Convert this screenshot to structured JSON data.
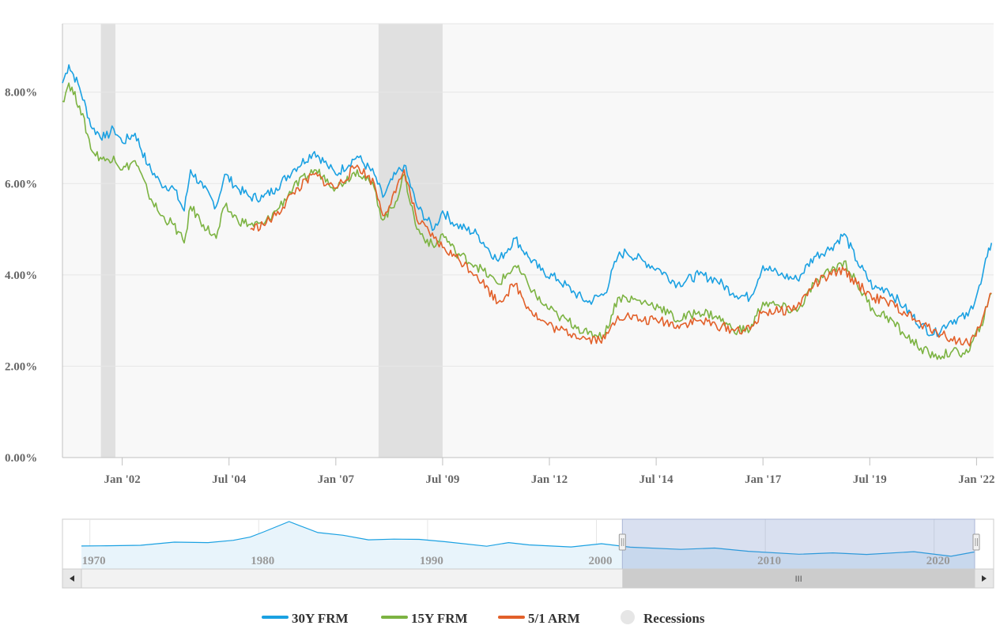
{
  "chart_data": {
    "type": "line",
    "ylim": [
      0,
      9.5
    ],
    "y_ticks": [
      "0.00%",
      "2.00%",
      "4.00%",
      "6.00%",
      "8.00%"
    ],
    "y_tick_values": [
      0,
      2,
      4,
      6,
      8
    ],
    "xlim": [
      2000.6,
      2022.4
    ],
    "x_ticks": [
      "Jan '02",
      "Jul '04",
      "Jan '07",
      "Jul '09",
      "Jan '12",
      "Jul '14",
      "Jan '17",
      "Jul '19",
      "Jan '22"
    ],
    "x_tick_values": [
      2002.0,
      2004.5,
      2007.0,
      2009.5,
      2012.0,
      2014.5,
      2017.0,
      2019.5,
      2022.0
    ],
    "grid": true,
    "legend_position": "bottom-center",
    "recessions": [
      [
        2001.5,
        2001.84
      ],
      [
        2008.0,
        2009.5
      ]
    ],
    "series": [
      {
        "name": "30Y FRM",
        "color": "#1ba1e2",
        "points": [
          [
            2000.6,
            8.2
          ],
          [
            2000.75,
            8.6
          ],
          [
            2001.0,
            8.1
          ],
          [
            2001.3,
            7.2
          ],
          [
            2001.6,
            7.0
          ],
          [
            2001.8,
            7.2
          ],
          [
            2002.0,
            6.9
          ],
          [
            2002.3,
            7.1
          ],
          [
            2002.6,
            6.4
          ],
          [
            2002.9,
            6.0
          ],
          [
            2003.2,
            5.9
          ],
          [
            2003.45,
            5.4
          ],
          [
            2003.6,
            6.3
          ],
          [
            2003.9,
            5.9
          ],
          [
            2004.2,
            5.5
          ],
          [
            2004.4,
            6.2
          ],
          [
            2004.7,
            5.9
          ],
          [
            2005.0,
            5.7
          ],
          [
            2005.3,
            5.7
          ],
          [
            2005.6,
            5.9
          ],
          [
            2006.0,
            6.3
          ],
          [
            2006.5,
            6.7
          ],
          [
            2006.8,
            6.4
          ],
          [
            2007.0,
            6.2
          ],
          [
            2007.5,
            6.6
          ],
          [
            2007.9,
            6.2
          ],
          [
            2008.1,
            5.7
          ],
          [
            2008.4,
            6.2
          ],
          [
            2008.6,
            6.4
          ],
          [
            2008.9,
            5.5
          ],
          [
            2009.3,
            5.0
          ],
          [
            2009.5,
            5.4
          ],
          [
            2009.8,
            5.1
          ],
          [
            2010.3,
            4.9
          ],
          [
            2010.8,
            4.3
          ],
          [
            2011.2,
            4.8
          ],
          [
            2011.5,
            4.4
          ],
          [
            2011.8,
            4.1
          ],
          [
            2012.2,
            3.9
          ],
          [
            2012.6,
            3.6
          ],
          [
            2012.9,
            3.4
          ],
          [
            2013.3,
            3.6
          ],
          [
            2013.6,
            4.4
          ],
          [
            2013.8,
            4.5
          ],
          [
            2014.2,
            4.3
          ],
          [
            2014.6,
            4.1
          ],
          [
            2015.0,
            3.8
          ],
          [
            2015.5,
            4.0
          ],
          [
            2015.9,
            3.9
          ],
          [
            2016.3,
            3.6
          ],
          [
            2016.7,
            3.5
          ],
          [
            2017.0,
            4.2
          ],
          [
            2017.4,
            4.0
          ],
          [
            2017.8,
            3.9
          ],
          [
            2018.2,
            4.4
          ],
          [
            2018.6,
            4.6
          ],
          [
            2018.9,
            4.9
          ],
          [
            2019.2,
            4.3
          ],
          [
            2019.6,
            3.7
          ],
          [
            2019.9,
            3.7
          ],
          [
            2020.3,
            3.3
          ],
          [
            2020.7,
            2.9
          ],
          [
            2021.0,
            2.7
          ],
          [
            2021.4,
            3.0
          ],
          [
            2021.8,
            3.1
          ],
          [
            2022.1,
            3.8
          ],
          [
            2022.25,
            4.4
          ],
          [
            2022.35,
            4.7
          ]
        ]
      },
      {
        "name": "15Y FRM",
        "color": "#7cb342",
        "points": [
          [
            2000.6,
            7.8
          ],
          [
            2000.75,
            8.2
          ],
          [
            2001.0,
            7.7
          ],
          [
            2001.3,
            6.7
          ],
          [
            2001.6,
            6.5
          ],
          [
            2001.8,
            6.6
          ],
          [
            2002.0,
            6.3
          ],
          [
            2002.3,
            6.5
          ],
          [
            2002.6,
            5.8
          ],
          [
            2002.9,
            5.3
          ],
          [
            2003.2,
            5.1
          ],
          [
            2003.45,
            4.7
          ],
          [
            2003.6,
            5.5
          ],
          [
            2003.9,
            5.1
          ],
          [
            2004.2,
            4.8
          ],
          [
            2004.4,
            5.5
          ],
          [
            2004.7,
            5.2
          ],
          [
            2005.0,
            5.1
          ],
          [
            2005.3,
            5.1
          ],
          [
            2005.6,
            5.4
          ],
          [
            2006.0,
            5.9
          ],
          [
            2006.5,
            6.3
          ],
          [
            2006.8,
            6.1
          ],
          [
            2007.0,
            5.9
          ],
          [
            2007.5,
            6.3
          ],
          [
            2007.9,
            5.9
          ],
          [
            2008.1,
            5.2
          ],
          [
            2008.4,
            5.6
          ],
          [
            2008.6,
            6.2
          ],
          [
            2008.9,
            5.0
          ],
          [
            2009.3,
            4.6
          ],
          [
            2009.5,
            4.9
          ],
          [
            2009.8,
            4.5
          ],
          [
            2010.3,
            4.2
          ],
          [
            2010.8,
            3.8
          ],
          [
            2011.2,
            4.2
          ],
          [
            2011.5,
            3.8
          ],
          [
            2011.8,
            3.4
          ],
          [
            2012.2,
            3.1
          ],
          [
            2012.6,
            2.9
          ],
          [
            2012.9,
            2.7
          ],
          [
            2013.3,
            2.7
          ],
          [
            2013.6,
            3.5
          ],
          [
            2013.8,
            3.5
          ],
          [
            2014.2,
            3.4
          ],
          [
            2014.6,
            3.3
          ],
          [
            2015.0,
            3.0
          ],
          [
            2015.5,
            3.2
          ],
          [
            2015.9,
            3.1
          ],
          [
            2016.3,
            2.8
          ],
          [
            2016.7,
            2.8
          ],
          [
            2017.0,
            3.4
          ],
          [
            2017.4,
            3.3
          ],
          [
            2017.8,
            3.2
          ],
          [
            2018.2,
            3.8
          ],
          [
            2018.6,
            4.1
          ],
          [
            2018.9,
            4.3
          ],
          [
            2019.2,
            3.8
          ],
          [
            2019.6,
            3.2
          ],
          [
            2019.9,
            3.1
          ],
          [
            2020.3,
            2.7
          ],
          [
            2020.7,
            2.4
          ],
          [
            2021.0,
            2.2
          ],
          [
            2021.4,
            2.3
          ],
          [
            2021.8,
            2.3
          ],
          [
            2022.1,
            2.9
          ],
          [
            2022.25,
            3.3
          ],
          [
            2022.35,
            3.6
          ]
        ]
      },
      {
        "name": "5/1 ARM",
        "color": "#e2602a",
        "points": [
          [
            2005.0,
            5.0
          ],
          [
            2005.3,
            5.1
          ],
          [
            2005.6,
            5.3
          ],
          [
            2006.0,
            5.8
          ],
          [
            2006.5,
            6.2
          ],
          [
            2006.8,
            6.0
          ],
          [
            2007.0,
            5.9
          ],
          [
            2007.5,
            6.4
          ],
          [
            2007.9,
            6.0
          ],
          [
            2008.1,
            5.3
          ],
          [
            2008.4,
            5.8
          ],
          [
            2008.6,
            6.3
          ],
          [
            2008.9,
            5.2
          ],
          [
            2009.3,
            4.8
          ],
          [
            2009.5,
            4.6
          ],
          [
            2009.8,
            4.4
          ],
          [
            2010.3,
            4.0
          ],
          [
            2010.8,
            3.4
          ],
          [
            2011.2,
            3.8
          ],
          [
            2011.5,
            3.3
          ],
          [
            2011.8,
            3.0
          ],
          [
            2012.2,
            2.8
          ],
          [
            2012.6,
            2.7
          ],
          [
            2012.9,
            2.6
          ],
          [
            2013.3,
            2.6
          ],
          [
            2013.6,
            3.1
          ],
          [
            2013.8,
            3.1
          ],
          [
            2014.2,
            3.0
          ],
          [
            2014.6,
            3.0
          ],
          [
            2015.0,
            2.9
          ],
          [
            2015.5,
            3.0
          ],
          [
            2015.9,
            2.9
          ],
          [
            2016.3,
            2.8
          ],
          [
            2016.7,
            2.8
          ],
          [
            2017.0,
            3.2
          ],
          [
            2017.4,
            3.2
          ],
          [
            2017.8,
            3.3
          ],
          [
            2018.2,
            3.8
          ],
          [
            2018.6,
            4.0
          ],
          [
            2018.9,
            4.1
          ],
          [
            2019.2,
            3.8
          ],
          [
            2019.6,
            3.5
          ],
          [
            2019.9,
            3.4
          ],
          [
            2020.3,
            3.2
          ],
          [
            2020.7,
            2.9
          ],
          [
            2021.0,
            2.8
          ],
          [
            2021.4,
            2.6
          ],
          [
            2021.8,
            2.5
          ],
          [
            2022.1,
            2.9
          ],
          [
            2022.25,
            3.3
          ],
          [
            2022.35,
            3.6
          ]
        ]
      }
    ]
  },
  "navigator": {
    "labels": [
      "1970",
      "1980",
      "1990",
      "2000",
      "2010",
      "2020"
    ],
    "label_years": [
      1970,
      1980,
      1990,
      2000,
      2010,
      2020
    ],
    "range": [
      1969.5,
      2022.4
    ],
    "selected": [
      2000.6,
      2022.4
    ],
    "series_points": [
      [
        1969.5,
        7.3
      ],
      [
        1971,
        7.4
      ],
      [
        1973,
        7.6
      ],
      [
        1975,
        9.0
      ],
      [
        1977,
        8.8
      ],
      [
        1978.5,
        9.8
      ],
      [
        1979.5,
        11.2
      ],
      [
        1980.3,
        13.5
      ],
      [
        1981.8,
        18.0
      ],
      [
        1982.5,
        16.0
      ],
      [
        1983.5,
        13.2
      ],
      [
        1985,
        12.0
      ],
      [
        1986.5,
        10.0
      ],
      [
        1988,
        10.3
      ],
      [
        1989.5,
        10.2
      ],
      [
        1991,
        9.2
      ],
      [
        1993.5,
        7.2
      ],
      [
        1994.8,
        8.8
      ],
      [
        1996,
        7.8
      ],
      [
        1998.5,
        6.9
      ],
      [
        2000.3,
        8.3
      ],
      [
        2002,
        6.8
      ],
      [
        2005,
        5.8
      ],
      [
        2007,
        6.4
      ],
      [
        2009,
        5.0
      ],
      [
        2012,
        3.7
      ],
      [
        2014,
        4.3
      ],
      [
        2016,
        3.6
      ],
      [
        2018.8,
        4.8
      ],
      [
        2021,
        2.8
      ],
      [
        2022.4,
        4.7
      ]
    ],
    "scrollbar_grip": "III"
  },
  "legend": [
    {
      "label": "30Y FRM",
      "color": "#1ba1e2",
      "symbol": "line"
    },
    {
      "label": "15Y FRM",
      "color": "#7cb342",
      "symbol": "line"
    },
    {
      "label": "5/1 ARM",
      "color": "#e2602a",
      "symbol": "line"
    },
    {
      "label": "Recessions",
      "color": "#e6e6e6",
      "symbol": "circle"
    }
  ]
}
